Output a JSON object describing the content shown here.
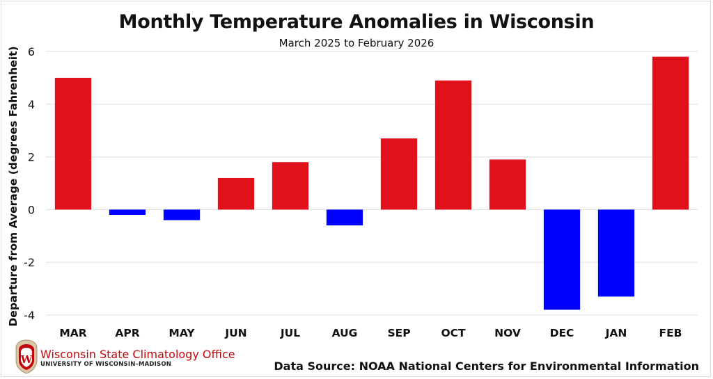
{
  "chart_data": {
    "type": "bar",
    "title": "Monthly Temperature Anomalies in Wisconsin",
    "subtitle": "March 2025 to February 2026",
    "xlabel": "",
    "ylabel": "Departure from Average (degrees Fahrenheit)",
    "ylim": [
      -4,
      6
    ],
    "yticks": [
      6,
      4,
      2,
      0,
      -2,
      -4
    ],
    "grid": true,
    "legend": "none",
    "categories": [
      "MAR",
      "APR",
      "MAY",
      "JUN",
      "JUL",
      "AUG",
      "SEP",
      "OCT",
      "NOV",
      "DEC",
      "JAN",
      "FEB"
    ],
    "values": [
      5.0,
      -0.2,
      -0.4,
      1.2,
      1.8,
      -0.6,
      2.7,
      4.9,
      1.9,
      -3.8,
      -3.3,
      5.8
    ],
    "colors": {
      "positive": "#e0111a",
      "negative": "#0000ff",
      "grid": "#e3e3e3"
    }
  },
  "footer": {
    "org_name": "Wisconsin State Climatology Office",
    "org_sub": "UNIVERSITY OF WISCONSIN–MADISON",
    "source": "Data Source: NOAA National Centers for Environmental Information",
    "logo_icon": "uw-crest-icon"
  }
}
